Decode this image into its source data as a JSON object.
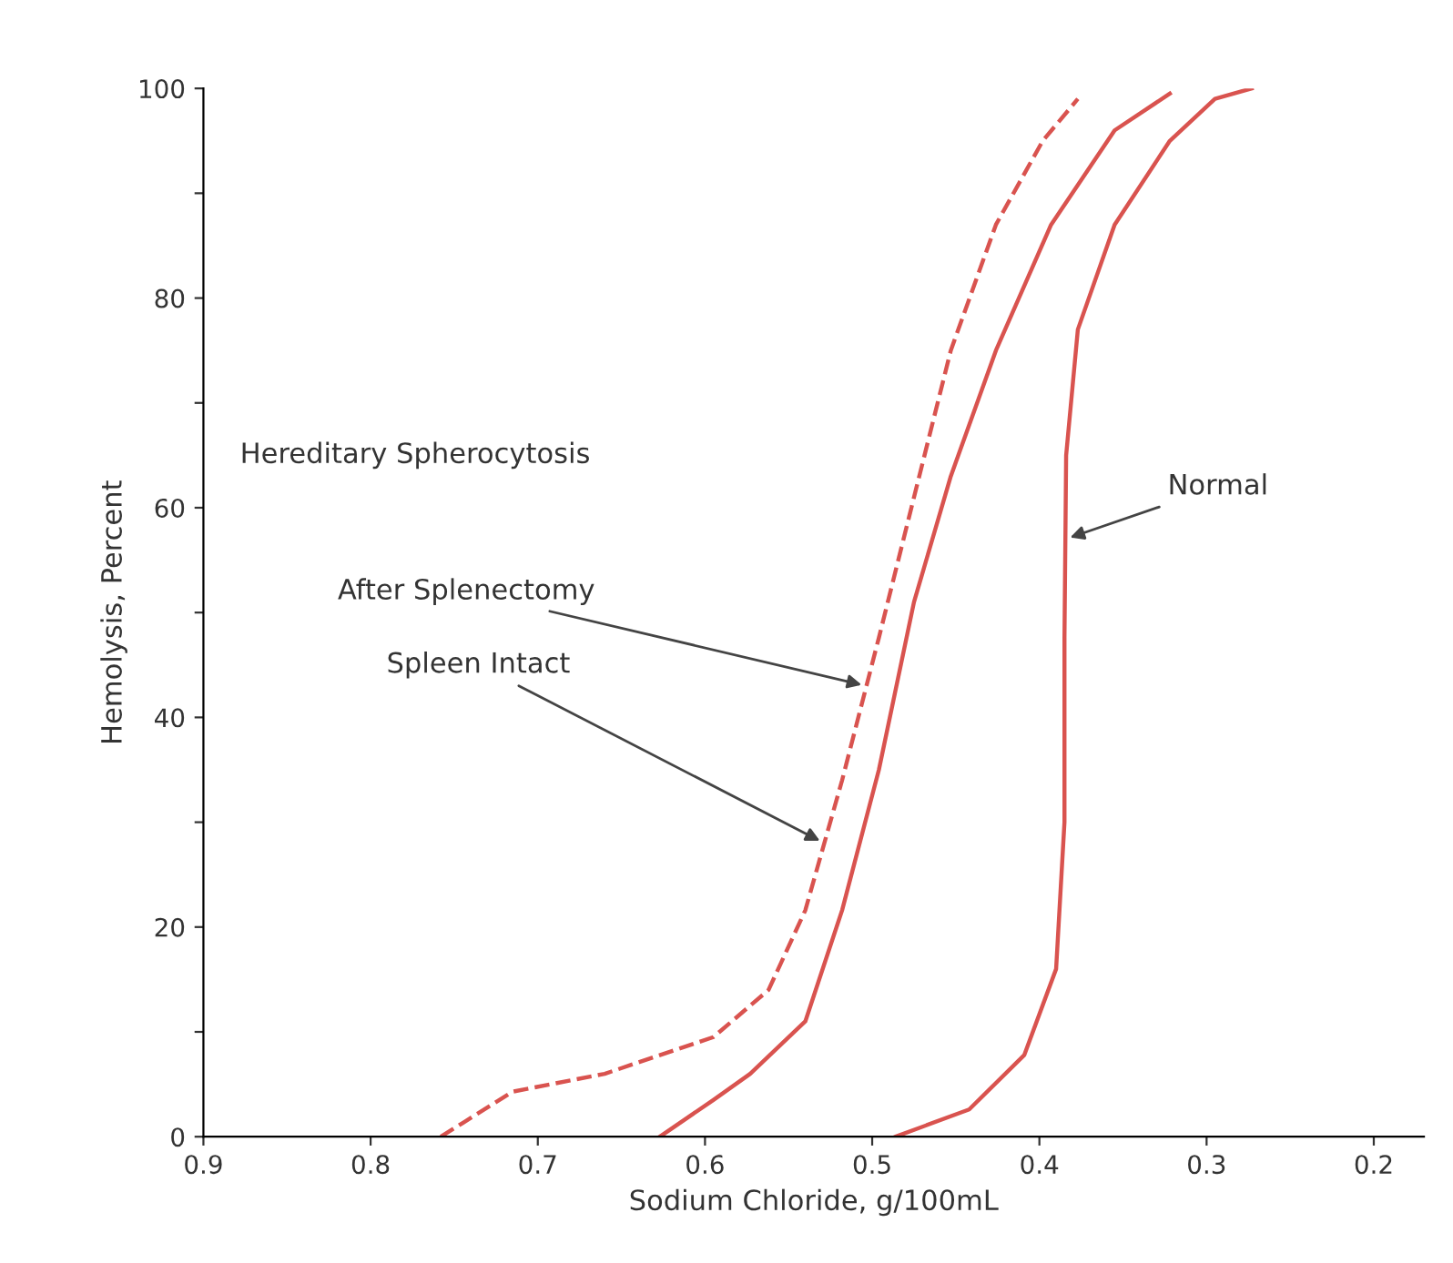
{
  "chart_data": {
    "type": "line",
    "xlabel": "Sodium Chloride, g/100mL",
    "ylabel": "Hemolysis, Percent",
    "xlim": [
      0.9,
      0.17
    ],
    "ylim": [
      0,
      100
    ],
    "xticks": [
      0.9,
      0.8,
      0.7,
      0.6,
      0.5,
      0.4,
      0.3,
      0.2
    ],
    "yticks": [
      0,
      {
        "value": 10,
        "label": null
      },
      20,
      {
        "value": 30,
        "label": null
      },
      40,
      {
        "value": 50,
        "label": null
      },
      60,
      {
        "value": 70,
        "label": null
      },
      80,
      {
        "value": 90,
        "label": null
      },
      100
    ],
    "grid": false,
    "legend": false,
    "marker": "none",
    "series": [
      {
        "color": "#d9534f",
        "line_style": "dashed",
        "x": [
          0.758,
          0.715,
          0.66,
          0.595,
          0.562,
          0.54,
          0.518,
          0.496,
          0.475,
          0.453,
          0.426,
          0.398,
          0.377
        ],
        "values": [
          0,
          4.3,
          6,
          9.5,
          14,
          21.6,
          34,
          47.6,
          61,
          75,
          87,
          95,
          99
        ]
      },
      {
        "color": "#d9534f",
        "line_style": "solid",
        "x": [
          0.627,
          0.595,
          0.573,
          0.54,
          0.518,
          0.496,
          0.475,
          0.453,
          0.426,
          0.393,
          0.355,
          0.322
        ],
        "values": [
          0,
          3.5,
          6,
          11,
          21.6,
          35,
          51,
          63,
          75,
          87,
          96,
          99.5
        ]
      },
      {
        "color": "#d9534f",
        "line_style": "solid",
        "x": [
          0.486,
          0.442,
          0.409,
          0.39,
          0.385,
          0.385,
          0.384,
          0.377,
          0.355,
          0.322,
          0.295,
          0.273
        ],
        "values": [
          0,
          2.6,
          7.8,
          16,
          30,
          47.6,
          65,
          77,
          87,
          95,
          99,
          100
        ]
      }
    ],
    "annotations": [
      "Hereditary Spherocytosis",
      {
        "text": "After Splenectomy",
        "x": 0.5034,
        "y": 43
      },
      {
        "text": "Spleen Intact",
        "x": 0.5286,
        "y": 28
      },
      {
        "text": "Normal",
        "x": 0.3845,
        "y": 57
      }
    ]
  }
}
